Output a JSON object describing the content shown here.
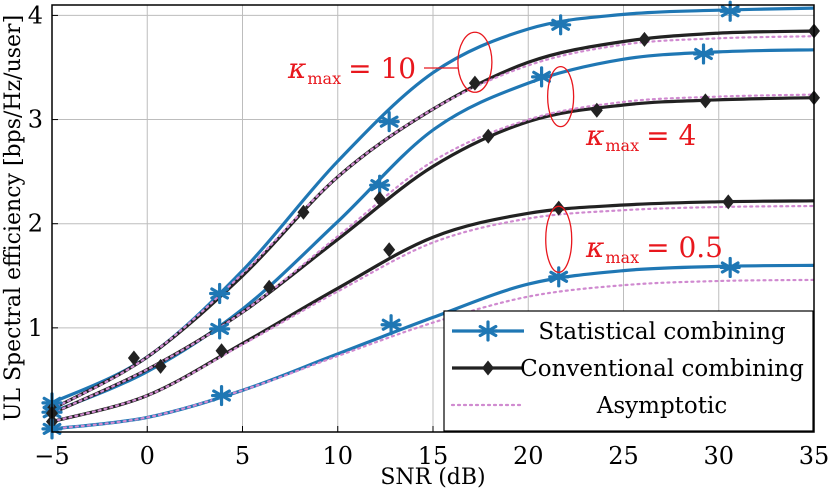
{
  "chart_data": {
    "type": "line",
    "xlabel": "SNR (dB)",
    "ylabel": "UL Spectral efficiency [bps/Hz/user]",
    "xlim": [
      -5,
      35
    ],
    "ylim": [
      0,
      4.1
    ],
    "x_ticks": [
      -5,
      0,
      5,
      10,
      15,
      20,
      25,
      30,
      35
    ],
    "y_ticks": [
      1,
      2,
      3,
      4
    ],
    "grid": true,
    "legend_position": "bottom-right",
    "legend": [
      {
        "label": "Statistical combining",
        "color": "#1f77b4",
        "marker": "star",
        "style": "solid"
      },
      {
        "label": "Conventional combining",
        "color": "#222222",
        "marker": "diamond",
        "style": "solid"
      },
      {
        "label": "Asymptotic",
        "color": "#d08ad0",
        "marker": "none",
        "style": "dotted"
      }
    ],
    "series": [
      {
        "group": "kappa_max = 10",
        "legend_ref": 0,
        "x": [
          -5,
          0,
          5,
          10,
          15,
          20,
          25,
          30,
          35
        ],
        "y": [
          0.28,
          0.72,
          1.55,
          2.6,
          3.45,
          3.87,
          4.01,
          4.05,
          4.07
        ],
        "marker_x": [
          -5,
          3.8,
          12.7,
          21.7,
          30.6
        ],
        "marker_y": [
          0.28,
          1.33,
          2.98,
          3.91,
          4.04
        ]
      },
      {
        "group": "kappa_max = 10",
        "legend_ref": 1,
        "x": [
          -5,
          0,
          5,
          10,
          15,
          20,
          25,
          30,
          35
        ],
        "y": [
          0.22,
          0.72,
          1.5,
          2.45,
          3.1,
          3.55,
          3.75,
          3.83,
          3.85
        ],
        "marker_x": [
          -5,
          -0.7,
          8.2,
          17.2,
          26.1,
          35
        ],
        "marker_y": [
          0.22,
          0.71,
          2.11,
          3.35,
          3.77,
          3.85
        ]
      },
      {
        "group": "kappa_max = 10",
        "legend_ref": 2,
        "x": [
          -5,
          0,
          5,
          10,
          15,
          20,
          25,
          30,
          35
        ],
        "y": [
          0.22,
          0.72,
          1.52,
          2.45,
          3.1,
          3.52,
          3.72,
          3.78,
          3.8
        ]
      },
      {
        "group": "kappa_max = 4",
        "legend_ref": 0,
        "x": [
          -5,
          0,
          5,
          10,
          15,
          20,
          25,
          30,
          35
        ],
        "y": [
          0.19,
          0.58,
          1.18,
          2.02,
          2.9,
          3.35,
          3.58,
          3.65,
          3.67
        ],
        "marker_x": [
          -5,
          3.8,
          12.2,
          20.7,
          29.2
        ],
        "marker_y": [
          0.19,
          0.99,
          2.37,
          3.41,
          3.63
        ]
      },
      {
        "group": "kappa_max = 4",
        "legend_ref": 1,
        "x": [
          -5,
          0,
          5,
          10,
          15,
          20,
          25,
          30,
          35
        ],
        "y": [
          0.18,
          0.6,
          1.15,
          1.85,
          2.55,
          2.98,
          3.14,
          3.19,
          3.21
        ],
        "marker_x": [
          -5,
          0.7,
          6.4,
          12.2,
          17.9,
          23.6,
          29.3,
          35
        ],
        "marker_y": [
          0.18,
          0.63,
          1.39,
          2.24,
          2.84,
          3.09,
          3.18,
          3.21
        ]
      },
      {
        "group": "kappa_max = 4",
        "legend_ref": 2,
        "x": [
          -5,
          0,
          5,
          10,
          15,
          20,
          25,
          30,
          35
        ],
        "y": [
          0.18,
          0.6,
          1.15,
          1.88,
          2.6,
          3.0,
          3.17,
          3.22,
          3.24
        ]
      },
      {
        "group": "kappa_max = 0.5",
        "legend_ref": 1,
        "x": [
          -5,
          0,
          5,
          10,
          15,
          20,
          25,
          30,
          35
        ],
        "y": [
          0.1,
          0.35,
          0.85,
          1.38,
          1.87,
          2.1,
          2.18,
          2.21,
          2.22
        ],
        "marker_x": [
          -5,
          3.9,
          12.7,
          21.6,
          30.5
        ],
        "marker_y": [
          0.1,
          0.78,
          1.75,
          2.15,
          2.21
        ]
      },
      {
        "group": "kappa_max = 0.5",
        "legend_ref": 2,
        "x": [
          -5,
          0,
          5,
          10,
          15,
          20,
          25,
          30,
          35
        ],
        "y": [
          0.1,
          0.35,
          0.84,
          1.35,
          1.82,
          2.05,
          2.13,
          2.16,
          2.17
        ]
      },
      {
        "group": "kappa_max = 0.5",
        "legend_ref": 0,
        "x": [
          -5,
          0,
          5,
          10,
          15,
          20,
          25,
          30,
          35
        ],
        "y": [
          0.03,
          0.14,
          0.4,
          0.75,
          1.1,
          1.42,
          1.55,
          1.59,
          1.6
        ],
        "marker_x": [
          -5,
          3.9,
          12.8,
          21.6,
          30.6
        ],
        "marker_y": [
          0.03,
          0.35,
          1.03,
          1.49,
          1.58
        ]
      },
      {
        "group": "kappa_max = 0.5",
        "legend_ref": 2,
        "x": [
          -5,
          0,
          5,
          10,
          15,
          20,
          25,
          30,
          35
        ],
        "y": [
          0.03,
          0.14,
          0.4,
          0.73,
          1.05,
          1.3,
          1.41,
          1.45,
          1.46
        ]
      }
    ],
    "annotations": [
      {
        "kappa": "κ",
        "sub": "max",
        "rel": "= 10",
        "color": "#e8171d",
        "ellipse_x": 17.2,
        "ellipse_y": 3.55
      },
      {
        "kappa": "κ",
        "sub": "max",
        "rel": "= 4",
        "color": "#e8171d",
        "ellipse_x": 21.7,
        "ellipse_y": 3.22
      },
      {
        "kappa": "κ",
        "sub": "max",
        "rel": "= 0.5",
        "color": "#e8171d",
        "ellipse_x": 21.6,
        "ellipse_y": 1.85
      }
    ]
  }
}
